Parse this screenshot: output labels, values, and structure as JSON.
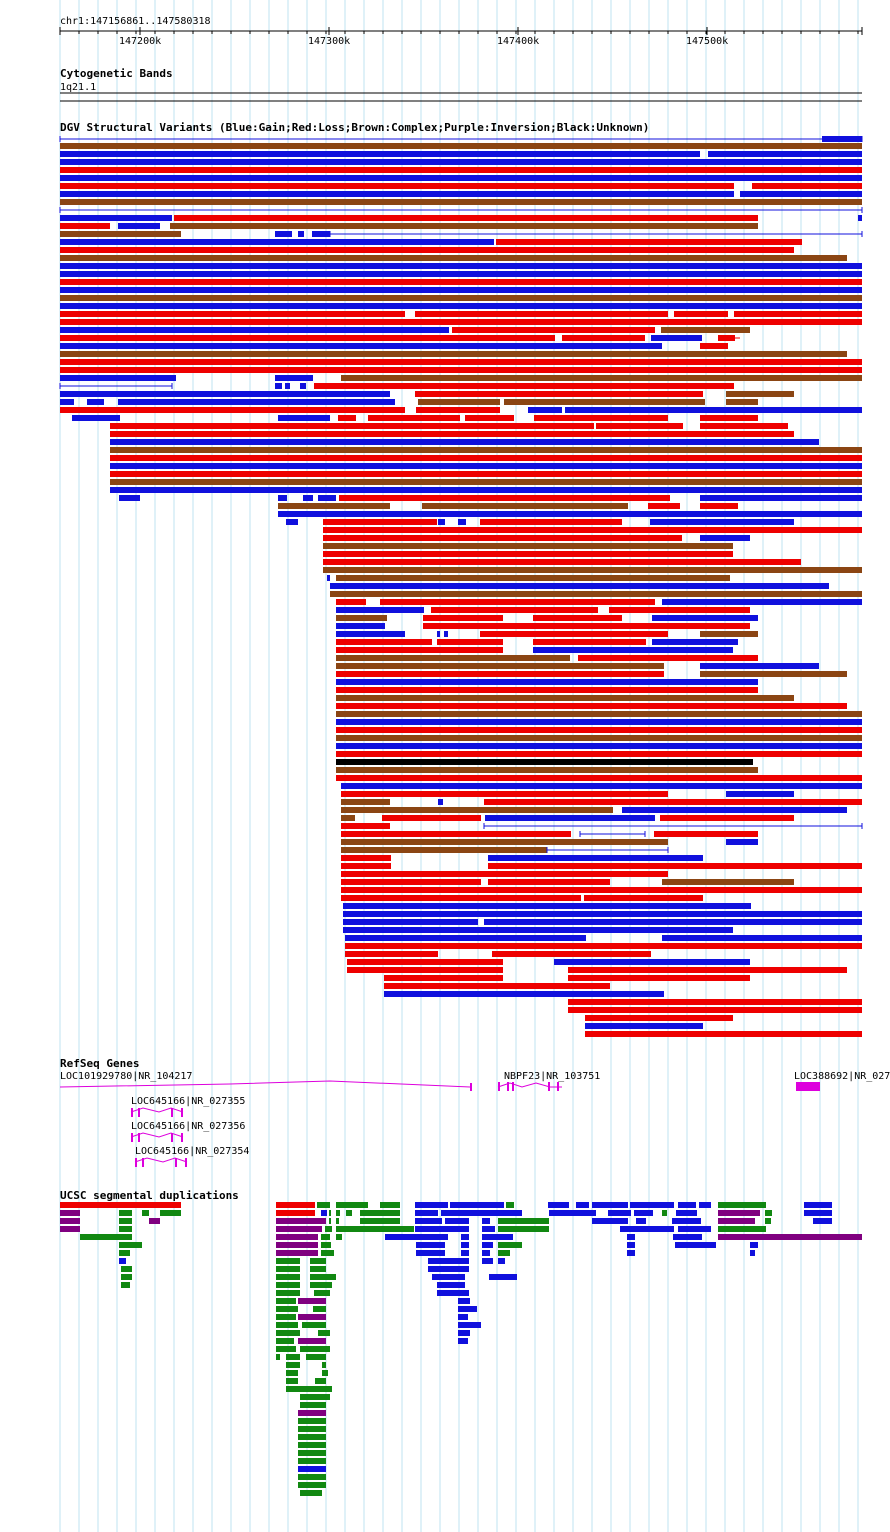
{
  "browser": {
    "region_label": "chr1:147156861..147580318",
    "ruler_ticks": [
      "147200k",
      "147300k",
      "147400k",
      "147500k"
    ]
  },
  "tracks": {
    "cytoband": {
      "title": "Cytogenetic Bands",
      "band_label": "1q21.1"
    },
    "dgv": {
      "title": "DGV Structural Variants (Blue:Gain;Red:Loss;Brown:Complex;Purple:Inversion;Black:Unknown)",
      "legend_colors": {
        "gain": "#1010dd",
        "loss": "#ee0000",
        "complex": "#8b4513",
        "inversion": "#800080",
        "unknown": "#000000"
      }
    },
    "refseq": {
      "title": "RefSeq Genes",
      "gene_labels": [
        "LOC101929780|NR_104217",
        "NBPF23|NR_103751",
        "LOC388692|NR_027",
        "LOC645166|NR_027355",
        "LOC645166|NR_027356",
        "LOC645166|NR_027354"
      ],
      "gene_color": "#dd00dd"
    },
    "segdups": {
      "title": "UCSC segmental duplications",
      "colors": [
        "#ee0000",
        "#118811",
        "#1010dd",
        "#800080"
      ]
    }
  }
}
